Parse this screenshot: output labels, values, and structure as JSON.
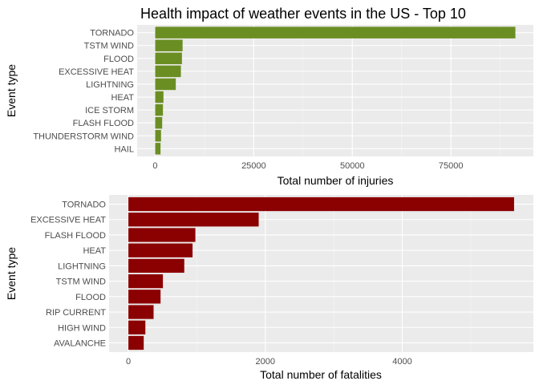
{
  "figure": {
    "title": "Health impact of weather events in the US - Top 10"
  },
  "chart_data": [
    {
      "type": "bar",
      "orientation": "horizontal",
      "title": "Health impact of weather events in the US - Top 10",
      "xlabel": "Total number of injuries",
      "ylabel": "Event type",
      "categories": [
        "TORNADO",
        "TSTM WIND",
        "FLOOD",
        "EXCESSIVE HEAT",
        "LIGHTNING",
        "HEAT",
        "ICE STORM",
        "FLASH FLOOD",
        "THUNDERSTORM WIND",
        "HAIL"
      ],
      "values": [
        91346,
        6957,
        6789,
        6525,
        5230,
        2100,
        1975,
        1777,
        1488,
        1361
      ],
      "xlim": [
        -4567,
        95913
      ],
      "x_ticks": [
        0,
        25000,
        50000,
        75000
      ],
      "x_tick_labels": [
        "0",
        "25000",
        "50000",
        "75000"
      ],
      "bar_color": "#6b8e23",
      "grid": true
    },
    {
      "type": "bar",
      "orientation": "horizontal",
      "xlabel": "Total number of fatalities",
      "ylabel": "Event type",
      "categories": [
        "TORNADO",
        "EXCESSIVE HEAT",
        "FLASH FLOOD",
        "HEAT",
        "LIGHTNING",
        "TSTM WIND",
        "FLOOD",
        "RIP CURRENT",
        "HIGH WIND",
        "AVALANCHE"
      ],
      "values": [
        5633,
        1903,
        978,
        937,
        816,
        504,
        470,
        368,
        248,
        224
      ],
      "xlim": [
        -282,
        5915
      ],
      "x_ticks": [
        0,
        2000,
        4000
      ],
      "x_tick_labels": [
        "0",
        "2000",
        "4000"
      ],
      "bar_color": "#8b0000",
      "grid": true
    }
  ]
}
